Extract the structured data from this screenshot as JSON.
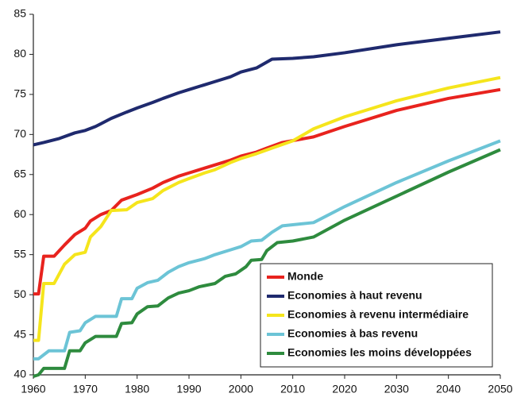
{
  "chart_data": {
    "type": "line",
    "xlim": [
      1960,
      2050
    ],
    "xticks": [
      1960,
      1970,
      1980,
      1990,
      2000,
      2010,
      2020,
      2030,
      2040,
      2050
    ],
    "ylim": [
      40,
      85
    ],
    "yticks": [
      40,
      45,
      50,
      55,
      60,
      65,
      70,
      75,
      80,
      85
    ],
    "legend": "lower right",
    "grid": false,
    "series": [
      {
        "name": "Monde",
        "color": "#e8231e",
        "x": [
          1960,
          1961,
          1962,
          1964,
          1965,
          1966,
          1968,
          1970,
          1971,
          1973,
          1975,
          1977,
          1980,
          1983,
          1985,
          1988,
          1990,
          1993,
          1995,
          1998,
          2000,
          2003,
          2005,
          2008,
          2014,
          2020,
          2030,
          2040,
          2050
        ],
        "values": [
          50.1,
          50.1,
          54.8,
          54.8,
          55.5,
          56.2,
          57.5,
          58.3,
          59.2,
          60,
          60.5,
          61.8,
          62.5,
          63.3,
          64,
          64.8,
          65.2,
          65.8,
          66.2,
          66.8,
          67.3,
          67.8,
          68.3,
          69,
          69.7,
          71,
          73,
          74.5,
          75.6
        ]
      },
      {
        "name": "Economies à haut revenu",
        "color": "#1f2a6e",
        "x": [
          1960,
          1962,
          1965,
          1968,
          1970,
          1972,
          1975,
          1978,
          1980,
          1983,
          1985,
          1988,
          1990,
          1993,
          1995,
          1998,
          2000,
          2003,
          2006,
          2010,
          2014,
          2020,
          2030,
          2040,
          2050
        ],
        "values": [
          68.7,
          69,
          69.5,
          70.2,
          70.5,
          71,
          72,
          72.8,
          73.3,
          74,
          74.5,
          75.2,
          75.6,
          76.2,
          76.6,
          77.2,
          77.8,
          78.3,
          79.4,
          79.5,
          79.7,
          80.2,
          81.2,
          82,
          82.8
        ]
      },
      {
        "name": "Economies à revenu intermédiaire",
        "color": "#f5e51c",
        "x": [
          1960,
          1961,
          1962,
          1964,
          1966,
          1968,
          1970,
          1971,
          1973,
          1975,
          1978,
          1980,
          1983,
          1985,
          1988,
          1990,
          1993,
          1995,
          1998,
          2000,
          2003,
          2006,
          2010,
          2014,
          2020,
          2030,
          2040,
          2050
        ],
        "values": [
          44.3,
          44.3,
          51.4,
          51.4,
          53.8,
          55,
          55.3,
          57.2,
          58.5,
          60.5,
          60.6,
          61.5,
          62,
          63,
          64,
          64.5,
          65.2,
          65.6,
          66.5,
          67,
          67.6,
          68.3,
          69.2,
          70.7,
          72.2,
          74.2,
          75.8,
          77.1
        ]
      },
      {
        "name": "Economies à bas revenu",
        "color": "#6cc4d6",
        "x": [
          1960,
          1961,
          1963,
          1966,
          1967,
          1969,
          1970,
          1972,
          1976,
          1977,
          1979,
          1980,
          1982,
          1984,
          1986,
          1988,
          1990,
          1993,
          1995,
          1998,
          2000,
          2002,
          2004,
          2006,
          2008,
          2014,
          2020,
          2030,
          2040,
          2050
        ],
        "values": [
          42,
          42,
          43,
          43,
          45.3,
          45.5,
          46.5,
          47.3,
          47.3,
          49.5,
          49.5,
          50.8,
          51.5,
          51.8,
          52.8,
          53.5,
          54,
          54.5,
          55,
          55.6,
          56,
          56.7,
          56.8,
          57.8,
          58.6,
          59,
          61,
          64,
          66.7,
          69.2
        ]
      },
      {
        "name": "Economies les moins développées",
        "color": "#2e8b3e",
        "x": [
          1960,
          1961,
          1962,
          1966,
          1967,
          1969,
          1970,
          1972,
          1976,
          1977,
          1979,
          1980,
          1982,
          1984,
          1986,
          1988,
          1990,
          1992,
          1995,
          1997,
          1999,
          2001,
          2002,
          2004,
          2005,
          2007,
          2010,
          2014,
          2020,
          2030,
          2040,
          2050
        ],
        "values": [
          39.8,
          40,
          40.8,
          40.8,
          43,
          43,
          44,
          44.8,
          44.8,
          46.4,
          46.5,
          47.6,
          48.5,
          48.6,
          49.6,
          50.2,
          50.5,
          51,
          51.4,
          52.3,
          52.6,
          53.5,
          54.3,
          54.4,
          55.5,
          56.5,
          56.7,
          57.2,
          59.3,
          62.3,
          65.3,
          68.1
        ]
      }
    ]
  }
}
